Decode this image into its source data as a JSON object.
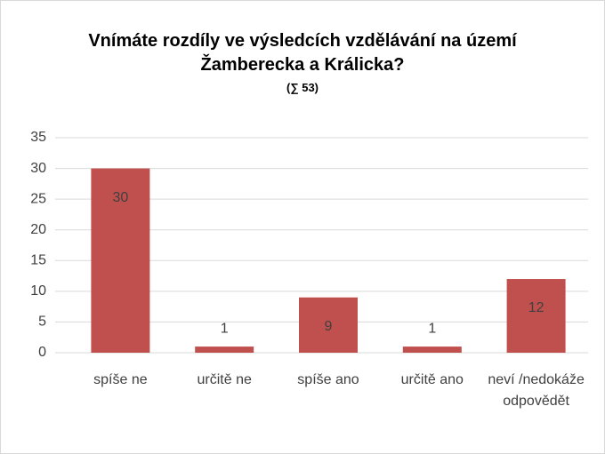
{
  "chart_data": {
    "type": "bar",
    "title": "Vnímáte rozdíly ve výsledcích vzdělávání na území Žamberecka a Králicka?",
    "subtitle": "(∑ 53)",
    "categories": [
      "spíše ne",
      "určitě ne",
      "spíše ano",
      "určitě ano",
      "neví /nedokáže odpovědět"
    ],
    "values": [
      30,
      1,
      9,
      1,
      12
    ],
    "color": "#c0504d",
    "ylim": [
      0,
      35
    ],
    "yticks": [
      0,
      5,
      10,
      15,
      20,
      25,
      30,
      35
    ],
    "grid": true
  }
}
